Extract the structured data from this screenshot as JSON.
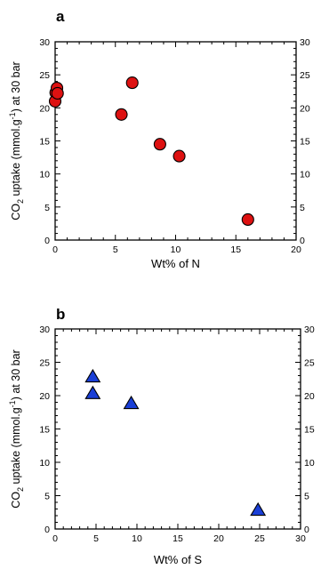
{
  "chart_data": [
    {
      "type": "scatter",
      "panel_label": "a",
      "xlabel": "Wt% of N",
      "ylabel": {
        "main": "CO",
        "sub": "2",
        "rest1": " uptake (mmol.g",
        "sup": "-1",
        "rest2": ") at 30 bar"
      },
      "xlim": [
        0,
        20
      ],
      "ylim": [
        0,
        30
      ],
      "xticks": [
        "0",
        "5",
        "10",
        "15",
        "20"
      ],
      "yticks": [
        "0",
        "5",
        "10",
        "15",
        "20",
        "25",
        "30"
      ],
      "yticks_right": [
        "0",
        "5",
        "10",
        "15",
        "20",
        "25",
        "30"
      ],
      "marker": "circle",
      "color": "#dd1111",
      "points": [
        {
          "x": 0.05,
          "y": 22.3
        },
        {
          "x": 0.15,
          "y": 23.0
        },
        {
          "x": 0.0,
          "y": 21.0
        },
        {
          "x": 0.2,
          "y": 22.2
        },
        {
          "x": 5.5,
          "y": 19.0
        },
        {
          "x": 6.4,
          "y": 23.8
        },
        {
          "x": 8.7,
          "y": 14.5
        },
        {
          "x": 10.3,
          "y": 12.7
        },
        {
          "x": 16.0,
          "y": 3.1
        }
      ]
    },
    {
      "type": "scatter",
      "panel_label": "b",
      "xlabel": "Wt% of S",
      "ylabel": {
        "main": "CO",
        "sub": "2",
        "rest1": " uptake (mmol.g",
        "sup": "-1",
        "rest2": ") at 30 bar"
      },
      "xlim": [
        0,
        30
      ],
      "ylim": [
        0,
        30
      ],
      "xticks": [
        "0",
        "5",
        "10",
        "15",
        "20",
        "25",
        "30"
      ],
      "yticks": [
        "0",
        "5",
        "10",
        "15",
        "20",
        "25",
        "30"
      ],
      "yticks_right": [
        "0",
        "5",
        "10",
        "15",
        "20",
        "25",
        "30"
      ],
      "marker": "triangle",
      "color": "#1a3fd6",
      "points": [
        {
          "x": 4.6,
          "y": 22.8
        },
        {
          "x": 4.6,
          "y": 20.3
        },
        {
          "x": 9.3,
          "y": 18.8
        },
        {
          "x": 24.8,
          "y": 2.8
        }
      ]
    }
  ]
}
